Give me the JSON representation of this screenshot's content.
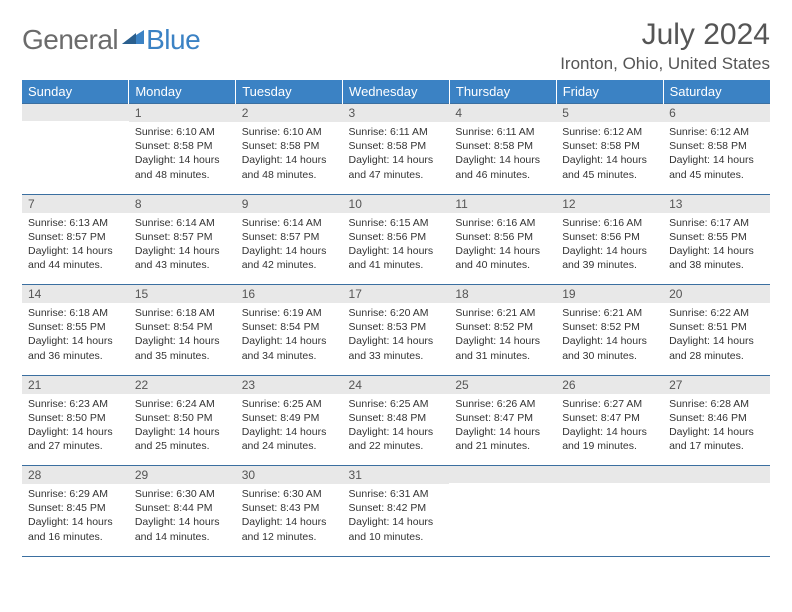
{
  "logo": {
    "general": "General",
    "blue": "Blue"
  },
  "title": "July 2024",
  "location": "Ironton, Ohio, United States",
  "header_bg": "#3b82c4",
  "days": [
    "Sunday",
    "Monday",
    "Tuesday",
    "Wednesday",
    "Thursday",
    "Friday",
    "Saturday"
  ],
  "weeks": [
    [
      null,
      {
        "n": "1",
        "sr": "Sunrise: 6:10 AM",
        "ss": "Sunset: 8:58 PM",
        "dl1": "Daylight: 14 hours",
        "dl2": "and 48 minutes."
      },
      {
        "n": "2",
        "sr": "Sunrise: 6:10 AM",
        "ss": "Sunset: 8:58 PM",
        "dl1": "Daylight: 14 hours",
        "dl2": "and 48 minutes."
      },
      {
        "n": "3",
        "sr": "Sunrise: 6:11 AM",
        "ss": "Sunset: 8:58 PM",
        "dl1": "Daylight: 14 hours",
        "dl2": "and 47 minutes."
      },
      {
        "n": "4",
        "sr": "Sunrise: 6:11 AM",
        "ss": "Sunset: 8:58 PM",
        "dl1": "Daylight: 14 hours",
        "dl2": "and 46 minutes."
      },
      {
        "n": "5",
        "sr": "Sunrise: 6:12 AM",
        "ss": "Sunset: 8:58 PM",
        "dl1": "Daylight: 14 hours",
        "dl2": "and 45 minutes."
      },
      {
        "n": "6",
        "sr": "Sunrise: 6:12 AM",
        "ss": "Sunset: 8:58 PM",
        "dl1": "Daylight: 14 hours",
        "dl2": "and 45 minutes."
      }
    ],
    [
      {
        "n": "7",
        "sr": "Sunrise: 6:13 AM",
        "ss": "Sunset: 8:57 PM",
        "dl1": "Daylight: 14 hours",
        "dl2": "and 44 minutes."
      },
      {
        "n": "8",
        "sr": "Sunrise: 6:14 AM",
        "ss": "Sunset: 8:57 PM",
        "dl1": "Daylight: 14 hours",
        "dl2": "and 43 minutes."
      },
      {
        "n": "9",
        "sr": "Sunrise: 6:14 AM",
        "ss": "Sunset: 8:57 PM",
        "dl1": "Daylight: 14 hours",
        "dl2": "and 42 minutes."
      },
      {
        "n": "10",
        "sr": "Sunrise: 6:15 AM",
        "ss": "Sunset: 8:56 PM",
        "dl1": "Daylight: 14 hours",
        "dl2": "and 41 minutes."
      },
      {
        "n": "11",
        "sr": "Sunrise: 6:16 AM",
        "ss": "Sunset: 8:56 PM",
        "dl1": "Daylight: 14 hours",
        "dl2": "and 40 minutes."
      },
      {
        "n": "12",
        "sr": "Sunrise: 6:16 AM",
        "ss": "Sunset: 8:56 PM",
        "dl1": "Daylight: 14 hours",
        "dl2": "and 39 minutes."
      },
      {
        "n": "13",
        "sr": "Sunrise: 6:17 AM",
        "ss": "Sunset: 8:55 PM",
        "dl1": "Daylight: 14 hours",
        "dl2": "and 38 minutes."
      }
    ],
    [
      {
        "n": "14",
        "sr": "Sunrise: 6:18 AM",
        "ss": "Sunset: 8:55 PM",
        "dl1": "Daylight: 14 hours",
        "dl2": "and 36 minutes."
      },
      {
        "n": "15",
        "sr": "Sunrise: 6:18 AM",
        "ss": "Sunset: 8:54 PM",
        "dl1": "Daylight: 14 hours",
        "dl2": "and 35 minutes."
      },
      {
        "n": "16",
        "sr": "Sunrise: 6:19 AM",
        "ss": "Sunset: 8:54 PM",
        "dl1": "Daylight: 14 hours",
        "dl2": "and 34 minutes."
      },
      {
        "n": "17",
        "sr": "Sunrise: 6:20 AM",
        "ss": "Sunset: 8:53 PM",
        "dl1": "Daylight: 14 hours",
        "dl2": "and 33 minutes."
      },
      {
        "n": "18",
        "sr": "Sunrise: 6:21 AM",
        "ss": "Sunset: 8:52 PM",
        "dl1": "Daylight: 14 hours",
        "dl2": "and 31 minutes."
      },
      {
        "n": "19",
        "sr": "Sunrise: 6:21 AM",
        "ss": "Sunset: 8:52 PM",
        "dl1": "Daylight: 14 hours",
        "dl2": "and 30 minutes."
      },
      {
        "n": "20",
        "sr": "Sunrise: 6:22 AM",
        "ss": "Sunset: 8:51 PM",
        "dl1": "Daylight: 14 hours",
        "dl2": "and 28 minutes."
      }
    ],
    [
      {
        "n": "21",
        "sr": "Sunrise: 6:23 AM",
        "ss": "Sunset: 8:50 PM",
        "dl1": "Daylight: 14 hours",
        "dl2": "and 27 minutes."
      },
      {
        "n": "22",
        "sr": "Sunrise: 6:24 AM",
        "ss": "Sunset: 8:50 PM",
        "dl1": "Daylight: 14 hours",
        "dl2": "and 25 minutes."
      },
      {
        "n": "23",
        "sr": "Sunrise: 6:25 AM",
        "ss": "Sunset: 8:49 PM",
        "dl1": "Daylight: 14 hours",
        "dl2": "and 24 minutes."
      },
      {
        "n": "24",
        "sr": "Sunrise: 6:25 AM",
        "ss": "Sunset: 8:48 PM",
        "dl1": "Daylight: 14 hours",
        "dl2": "and 22 minutes."
      },
      {
        "n": "25",
        "sr": "Sunrise: 6:26 AM",
        "ss": "Sunset: 8:47 PM",
        "dl1": "Daylight: 14 hours",
        "dl2": "and 21 minutes."
      },
      {
        "n": "26",
        "sr": "Sunrise: 6:27 AM",
        "ss": "Sunset: 8:47 PM",
        "dl1": "Daylight: 14 hours",
        "dl2": "and 19 minutes."
      },
      {
        "n": "27",
        "sr": "Sunrise: 6:28 AM",
        "ss": "Sunset: 8:46 PM",
        "dl1": "Daylight: 14 hours",
        "dl2": "and 17 minutes."
      }
    ],
    [
      {
        "n": "28",
        "sr": "Sunrise: 6:29 AM",
        "ss": "Sunset: 8:45 PM",
        "dl1": "Daylight: 14 hours",
        "dl2": "and 16 minutes."
      },
      {
        "n": "29",
        "sr": "Sunrise: 6:30 AM",
        "ss": "Sunset: 8:44 PM",
        "dl1": "Daylight: 14 hours",
        "dl2": "and 14 minutes."
      },
      {
        "n": "30",
        "sr": "Sunrise: 6:30 AM",
        "ss": "Sunset: 8:43 PM",
        "dl1": "Daylight: 14 hours",
        "dl2": "and 12 minutes."
      },
      {
        "n": "31",
        "sr": "Sunrise: 6:31 AM",
        "ss": "Sunset: 8:42 PM",
        "dl1": "Daylight: 14 hours",
        "dl2": "and 10 minutes."
      },
      null,
      null,
      null
    ]
  ]
}
